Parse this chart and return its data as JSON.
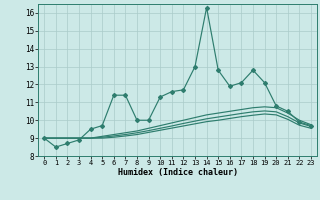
{
  "xlabel": "Humidex (Indice chaleur)",
  "x": [
    0,
    1,
    2,
    3,
    4,
    5,
    6,
    7,
    8,
    9,
    10,
    11,
    12,
    13,
    14,
    15,
    16,
    17,
    18,
    19,
    20,
    21,
    22,
    23
  ],
  "line_main": [
    9.0,
    8.5,
    8.7,
    8.9,
    9.5,
    9.7,
    11.4,
    11.4,
    10.0,
    10.0,
    11.3,
    11.6,
    11.7,
    13.0,
    16.3,
    12.8,
    11.9,
    12.1,
    12.8,
    12.1,
    10.8,
    10.5,
    9.9,
    9.7
  ],
  "line_ref1": [
    9.0,
    9.0,
    9.0,
    9.0,
    9.0,
    9.1,
    9.2,
    9.3,
    9.4,
    9.55,
    9.7,
    9.85,
    10.0,
    10.15,
    10.3,
    10.4,
    10.5,
    10.6,
    10.7,
    10.75,
    10.7,
    10.4,
    10.0,
    9.75
  ],
  "line_ref2": [
    9.0,
    9.0,
    9.0,
    9.0,
    9.0,
    9.05,
    9.12,
    9.2,
    9.3,
    9.42,
    9.55,
    9.68,
    9.82,
    9.95,
    10.08,
    10.18,
    10.28,
    10.38,
    10.47,
    10.52,
    10.47,
    10.2,
    9.85,
    9.65
  ],
  "line_ref3": [
    9.0,
    9.0,
    9.0,
    9.0,
    9.0,
    9.0,
    9.05,
    9.12,
    9.2,
    9.32,
    9.44,
    9.56,
    9.68,
    9.8,
    9.92,
    10.0,
    10.1,
    10.2,
    10.28,
    10.35,
    10.3,
    10.05,
    9.72,
    9.55
  ],
  "color_main": "#2e7d6e",
  "color_refs": "#2e7d6e",
  "bg_color": "#cce9e7",
  "grid_color": "#aaccca",
  "ylim": [
    8.0,
    16.5
  ],
  "xlim": [
    -0.5,
    23.5
  ],
  "yticks": [
    8,
    9,
    10,
    11,
    12,
    13,
    14,
    15,
    16
  ],
  "xticks": [
    0,
    1,
    2,
    3,
    4,
    5,
    6,
    7,
    8,
    9,
    10,
    11,
    12,
    13,
    14,
    15,
    16,
    17,
    18,
    19,
    20,
    21,
    22,
    23
  ]
}
